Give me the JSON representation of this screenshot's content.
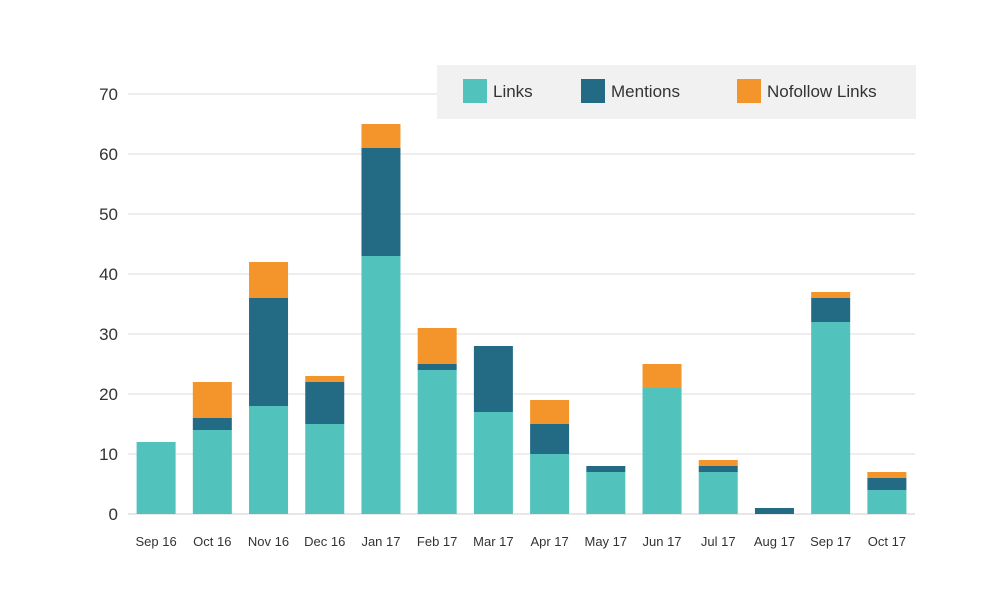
{
  "chart_data": {
    "type": "bar",
    "stacked": true,
    "title": "",
    "xlabel": "",
    "ylabel": "",
    "ylim": [
      0,
      70
    ],
    "yticks": [
      0,
      10,
      20,
      30,
      40,
      50,
      60,
      70
    ],
    "grid": true,
    "legend_position": "top-right",
    "categories": [
      "Sep 16",
      "Oct 16",
      "Nov 16",
      "Dec 16",
      "Jan 17",
      "Feb 17",
      "Mar 17",
      "Apr 17",
      "May 17",
      "Jun 17",
      "Jul 17",
      "Aug 17",
      "Sep 17",
      "Oct 17"
    ],
    "series": [
      {
        "name": "Links",
        "color": "#52c2bd",
        "values": [
          12,
          14,
          18,
          15,
          43,
          24,
          17,
          10,
          7,
          21,
          7,
          0,
          32,
          4
        ]
      },
      {
        "name": "Mentions",
        "color": "#236b85",
        "values": [
          0,
          2,
          18,
          7,
          18,
          1,
          11,
          5,
          1,
          0,
          1,
          1,
          4,
          2
        ]
      },
      {
        "name": "Nofollow Links",
        "color": "#f4952b",
        "values": [
          0,
          6,
          6,
          1,
          4,
          6,
          0,
          4,
          0,
          4,
          1,
          0,
          1,
          1
        ]
      }
    ]
  }
}
